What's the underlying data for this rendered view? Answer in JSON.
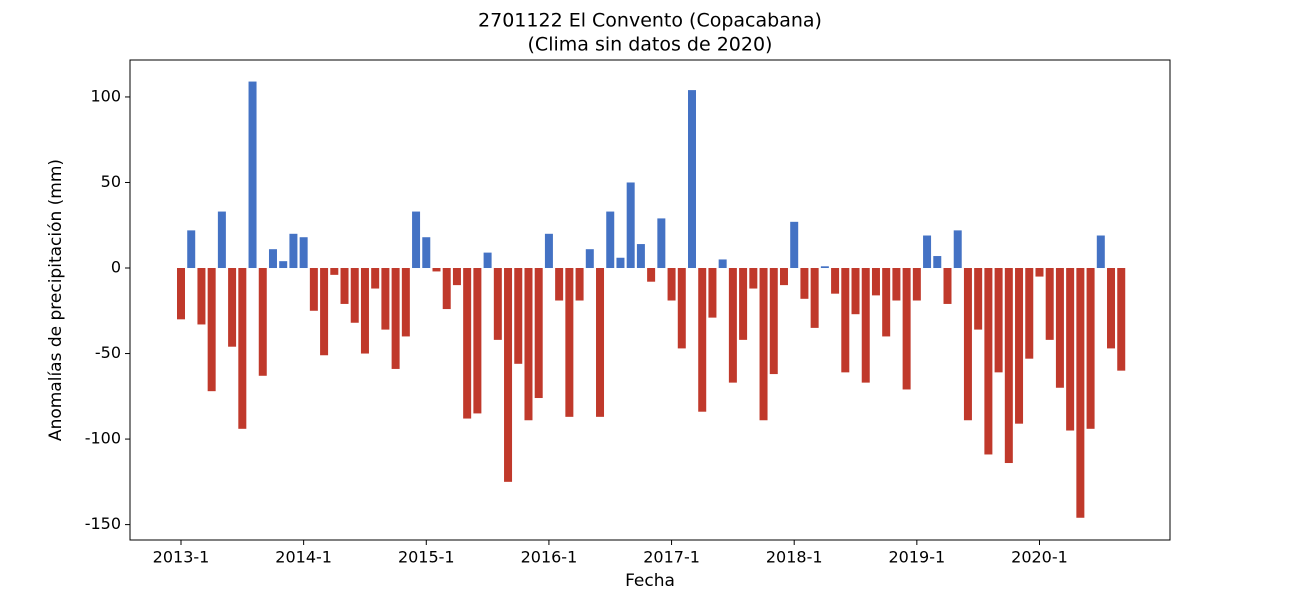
{
  "chart_data": {
    "type": "bar",
    "title": "2701122 El Convento (Copacabana)",
    "subtitle": "(Clima sin datos de 2020)",
    "x_label": "Fecha",
    "y_label": "Anomalías de precipitación (mm)",
    "categories": [
      "2013-1",
      null,
      null,
      null,
      null,
      null,
      null,
      null,
      null,
      null,
      null,
      null,
      "2014-1",
      null,
      null,
      null,
      null,
      null,
      null,
      null,
      null,
      null,
      null,
      null,
      "2015-1",
      null,
      null,
      null,
      null,
      null,
      null,
      null,
      null,
      null,
      null,
      null,
      "2016-1",
      null,
      null,
      null,
      null,
      null,
      null,
      null,
      null,
      null,
      null,
      null,
      "2017-1",
      null,
      null,
      null,
      null,
      null,
      null,
      null,
      null,
      null,
      null,
      null,
      "2018-1",
      null,
      null,
      null,
      null,
      null,
      null,
      null,
      null,
      null,
      null,
      null,
      "2019-1",
      null,
      null,
      null,
      null,
      null,
      null,
      null,
      null,
      null,
      null,
      null,
      "2020-1",
      null,
      null,
      null,
      null,
      null,
      null,
      null,
      null
    ],
    "values": [
      -30,
      22,
      -33,
      -72,
      33,
      -46,
      -94,
      109,
      -63,
      11,
      4,
      20,
      18,
      -25,
      -51,
      -4,
      -21,
      -32,
      -50,
      -12,
      -36,
      -59,
      -40,
      33,
      18,
      -2,
      -24,
      -10,
      -88,
      -85,
      9,
      -42,
      -125,
      -56,
      -89,
      -76,
      20,
      -19,
      -87,
      -19,
      11,
      -87,
      33,
      6,
      50,
      14,
      -8,
      29,
      -19,
      -47,
      104,
      -84,
      -29,
      5,
      -67,
      -42,
      -12,
      -89,
      -62,
      -10,
      27,
      -18,
      -35,
      1,
      -15,
      -61,
      -27,
      -67,
      -16,
      -40,
      -19,
      -71,
      -19,
      19,
      7,
      -21,
      22,
      -89,
      -36,
      -109,
      -61,
      -114,
      -91,
      -53,
      -5,
      -42,
      -70,
      -95,
      -146,
      -94,
      19,
      -47,
      -60
    ],
    "positive_color": "#4472c4",
    "negative_color": "#c0392b",
    "ylim": [
      -159,
      121.6
    ],
    "yticks": [
      -150,
      -100,
      -50,
      0,
      50,
      100
    ],
    "grid": false
  }
}
